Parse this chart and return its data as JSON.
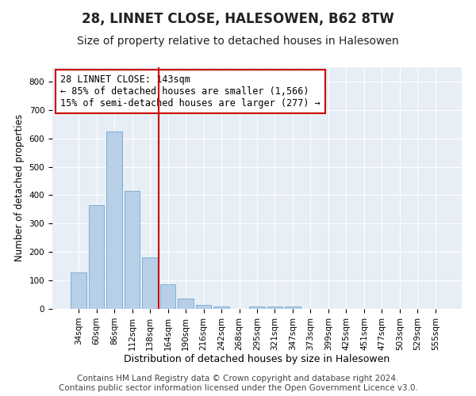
{
  "title": "28, LINNET CLOSE, HALESOWEN, B62 8TW",
  "subtitle": "Size of property relative to detached houses in Halesowen",
  "xlabel": "Distribution of detached houses by size in Halesowen",
  "ylabel": "Number of detached properties",
  "bar_labels": [
    "34sqm",
    "60sqm",
    "86sqm",
    "112sqm",
    "138sqm",
    "164sqm",
    "190sqm",
    "216sqm",
    "242sqm",
    "268sqm",
    "295sqm",
    "321sqm",
    "347sqm",
    "373sqm",
    "399sqm",
    "425sqm",
    "451sqm",
    "477sqm",
    "503sqm",
    "529sqm",
    "555sqm"
  ],
  "bar_values": [
    128,
    365,
    623,
    415,
    180,
    87,
    35,
    14,
    8,
    0,
    8,
    8,
    8,
    0,
    0,
    0,
    0,
    0,
    0,
    0,
    0
  ],
  "bar_color": "#b8cfe8",
  "bar_edgecolor": "#7aafd4",
  "vline_x": 4.5,
  "vline_color": "#cc0000",
  "annotation_text": "28 LINNET CLOSE: 143sqm\n← 85% of detached houses are smaller (1,566)\n15% of semi-detached houses are larger (277) →",
  "annotation_box_facecolor": "#ffffff",
  "annotation_box_edgecolor": "#cc0000",
  "ylim": [
    0,
    850
  ],
  "yticks": [
    0,
    100,
    200,
    300,
    400,
    500,
    600,
    700,
    800
  ],
  "bg_color": "#e8eef6",
  "footer_text": "Contains HM Land Registry data © Crown copyright and database right 2024.\nContains public sector information licensed under the Open Government Licence v3.0.",
  "title_fontsize": 12,
  "subtitle_fontsize": 10,
  "annotation_fontsize": 8.5,
  "xlabel_fontsize": 9,
  "ylabel_fontsize": 8.5,
  "footer_fontsize": 7.5,
  "tick_fontsize": 7.5
}
